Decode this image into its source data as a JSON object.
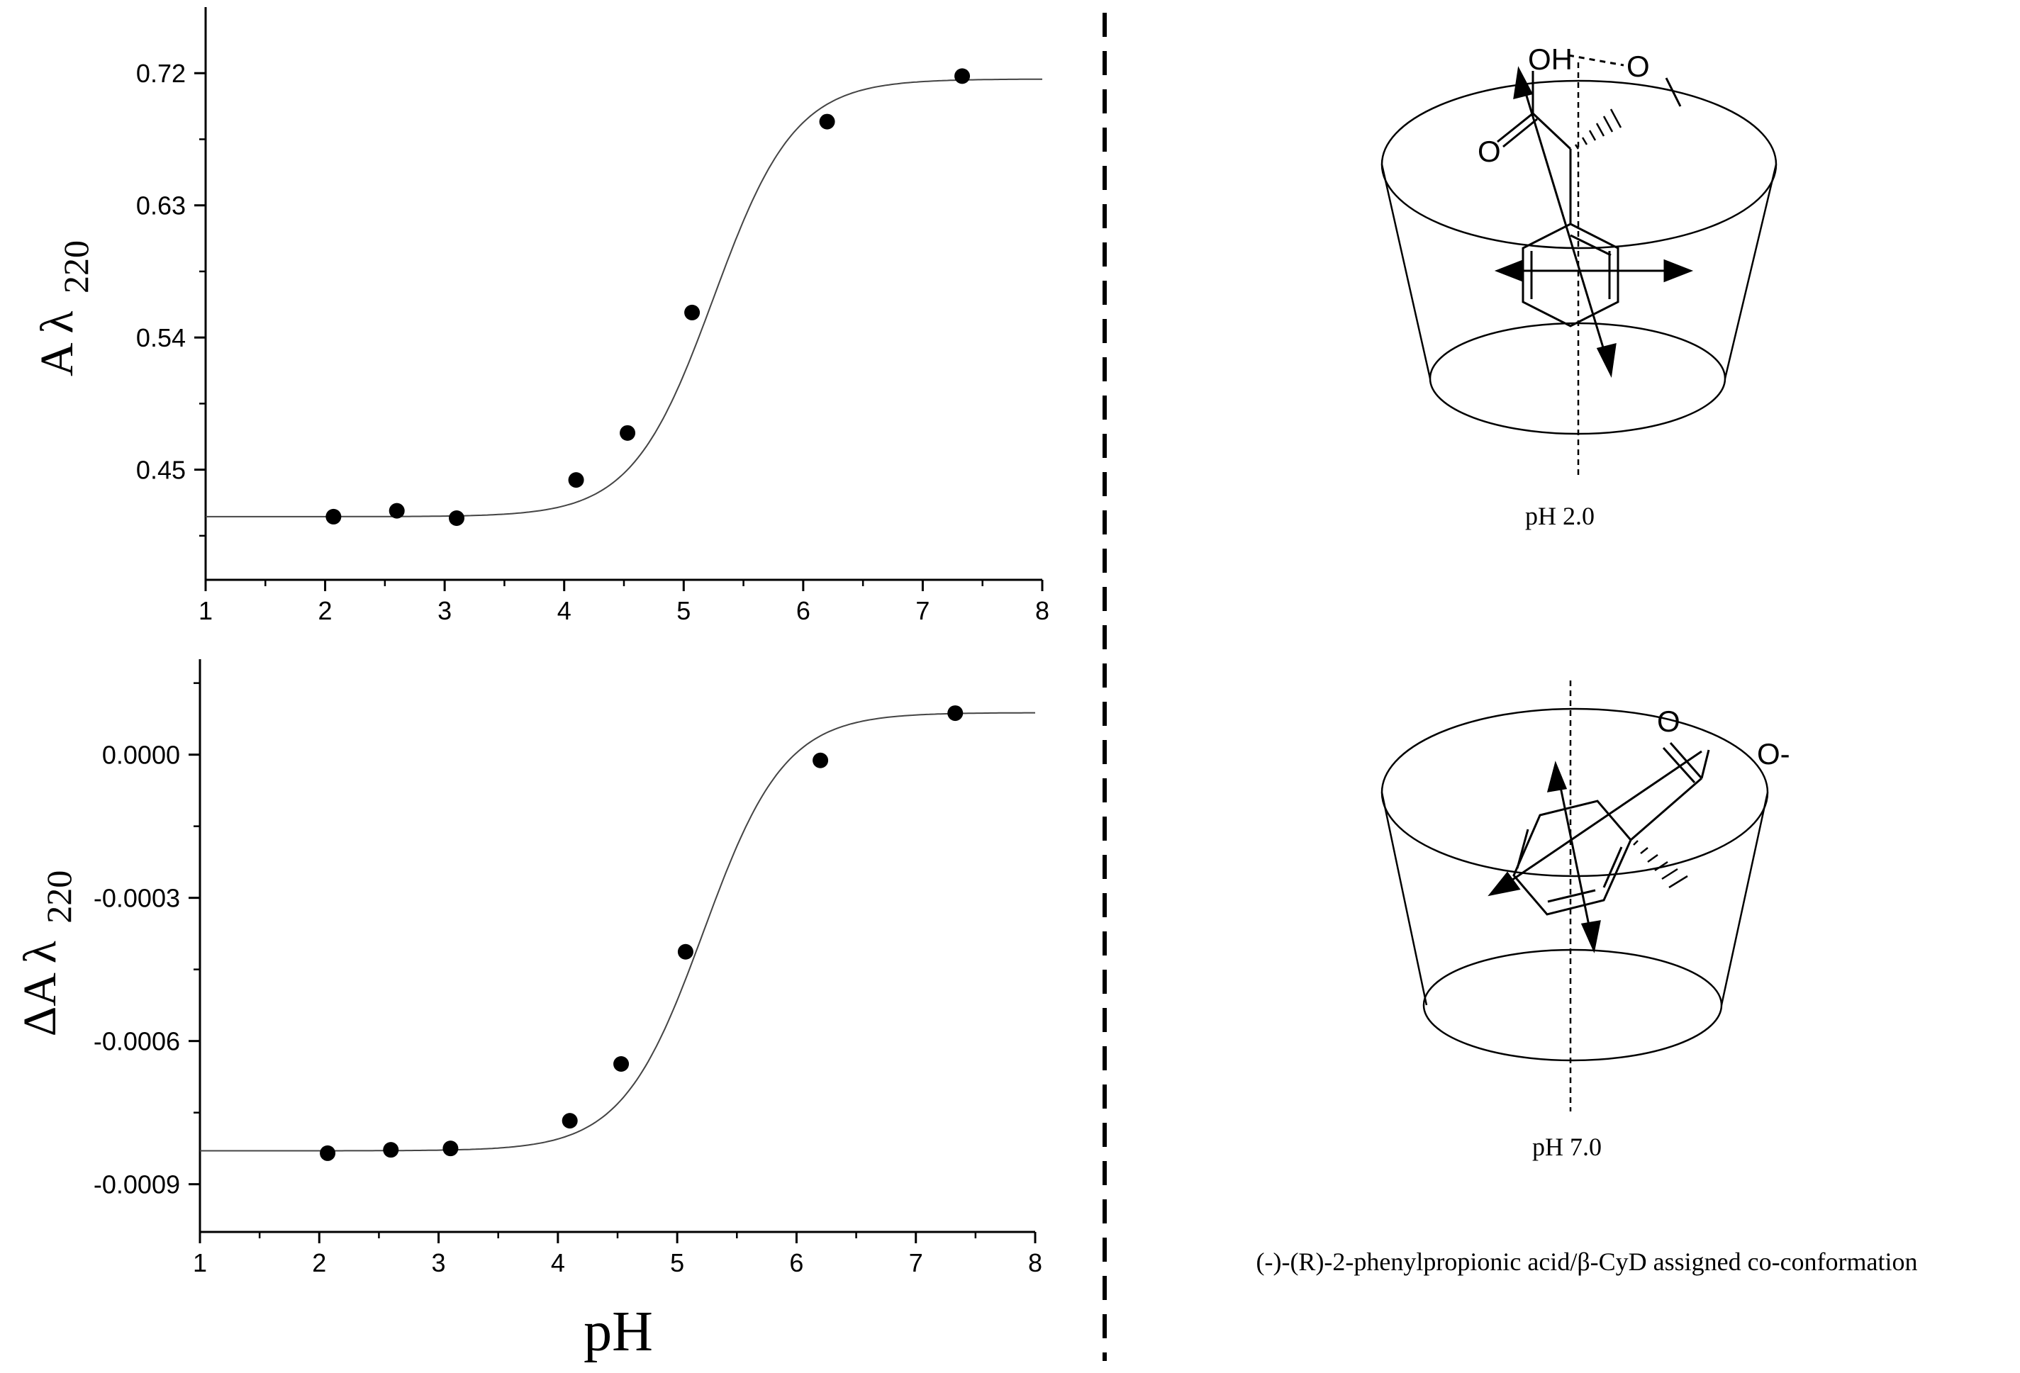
{
  "chart_data": [
    {
      "type": "scatter",
      "title": "",
      "xlabel": "",
      "ylabel": "A λ 220",
      "ylabel_main": "A λ",
      "ylabel_sub": "220",
      "xlim": [
        1,
        8
      ],
      "ylim": [
        0.375,
        0.765
      ],
      "xticks": [
        1,
        2,
        3,
        4,
        5,
        6,
        7,
        8
      ],
      "xtick_labels": [
        "1",
        "2",
        "3",
        "4",
        "5",
        "6",
        "7",
        "8"
      ],
      "yticks": [
        0.45,
        0.54,
        0.63,
        0.72
      ],
      "ytick_labels": [
        "0.45",
        "0.54",
        "0.63",
        "0.72"
      ],
      "grid": false,
      "series": [
        {
          "points": [
            {
              "x": 2.07,
              "y": 0.418
            },
            {
              "x": 2.6,
              "y": 0.422
            },
            {
              "x": 3.1,
              "y": 0.417
            },
            {
              "x": 4.1,
              "y": 0.443
            },
            {
              "x": 4.53,
              "y": 0.475
            },
            {
              "x": 5.07,
              "y": 0.557
            },
            {
              "x": 6.2,
              "y": 0.687
            },
            {
              "x": 7.33,
              "y": 0.718
            }
          ],
          "fit": {
            "kind": "sigmoid",
            "bottom": 0.418,
            "top": 0.716,
            "midpoint": 5.25,
            "width": 0.34
          }
        }
      ]
    },
    {
      "type": "scatter",
      "title": "",
      "xlabel": "pH",
      "ylabel": "ΔA λ 220",
      "ylabel_main": "ΔA  λ",
      "ylabel_sub": "220",
      "xlim": [
        1,
        8
      ],
      "ylim": [
        -0.001,
        0.0002
      ],
      "xticks": [
        1,
        2,
        3,
        4,
        5,
        6,
        7,
        8
      ],
      "xtick_labels": [
        "1",
        "2",
        "3",
        "4",
        "5",
        "6",
        "7",
        "8"
      ],
      "yticks": [
        -0.0009,
        -0.0006,
        -0.0003,
        0.0
      ],
      "ytick_labels": [
        "-0.0009",
        "-0.0006",
        "-0.0003",
        "0.0000"
      ],
      "grid": false,
      "series": [
        {
          "points": [
            {
              "x": 2.07,
              "y": -0.000835
            },
            {
              "x": 2.6,
              "y": -0.000828
            },
            {
              "x": 3.1,
              "y": -0.000825
            },
            {
              "x": 4.1,
              "y": -0.000767
            },
            {
              "x": 4.53,
              "y": -0.000648
            },
            {
              "x": 5.07,
              "y": -0.000413
            },
            {
              "x": 6.2,
              "y": -1.2e-05
            },
            {
              "x": 7.33,
              "y": 8.7e-05
            }
          ],
          "fit": {
            "kind": "sigmoid",
            "bottom": -0.00083,
            "top": 8.8e-05,
            "midpoint": 5.22,
            "width": 0.34
          }
        }
      ]
    }
  ],
  "figure": {
    "scheme_top": {
      "label": "pH 2.0",
      "atom_oh": "OH",
      "atom_o_ring": "O",
      "atom_o_carbonyl": "O"
    },
    "scheme_bottom": {
      "label": "pH 7.0",
      "atom_o_carbonyl": "O",
      "atom_o_minus": "O-"
    },
    "caption": "(-)-(R)-2-phenylpropionic acid/β-CyD assigned co-conformation"
  }
}
